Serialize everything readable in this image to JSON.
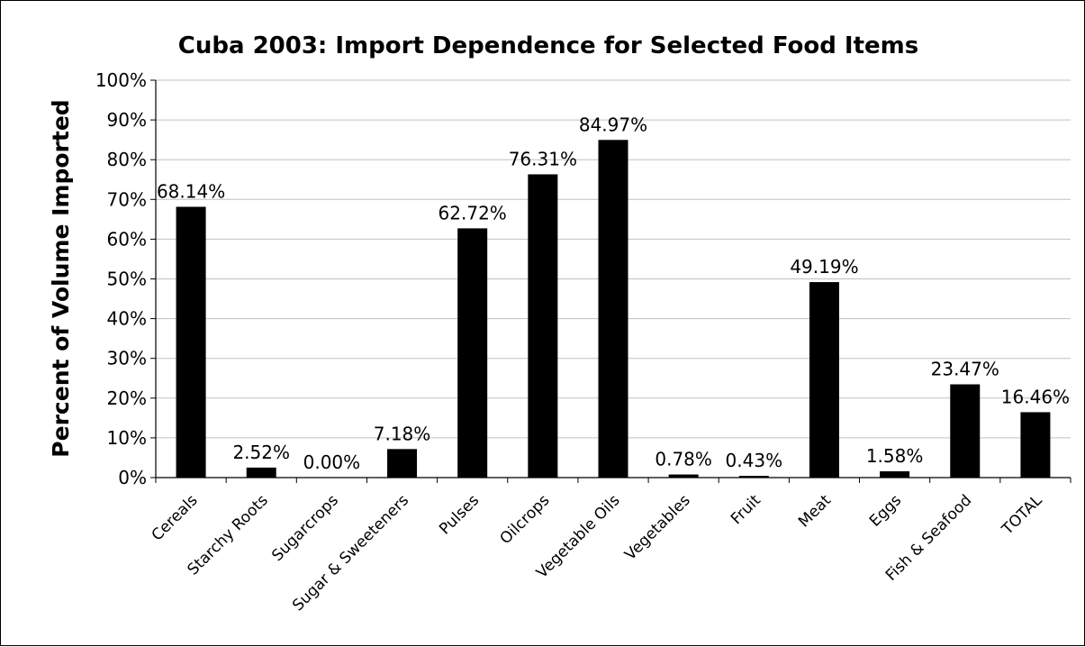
{
  "chart_data": {
    "type": "bar",
    "title": "Cuba 2003: Import Dependence for Selected Food Items",
    "xlabel": "",
    "ylabel": "Percent of Volume Imported",
    "ylim": [
      0,
      100
    ],
    "yticks": [
      "0%",
      "10%",
      "20%",
      "30%",
      "40%",
      "50%",
      "60%",
      "70%",
      "80%",
      "90%",
      "100%"
    ],
    "grid": true,
    "legend": "none",
    "bar_color": "#000000",
    "grid_color": "#c0c0c0",
    "categories": [
      "Cereals",
      "Starchy Roots",
      "Sugarcrops",
      "Sugar & Sweeteners",
      "Pulses",
      "Oilcrops",
      "Vegetable Oils",
      "Vegetables",
      "Fruit",
      "Meat",
      "Eggs",
      "Fish & Seafood",
      "TOTAL"
    ],
    "values": [
      68.14,
      2.52,
      0.0,
      7.18,
      62.72,
      76.31,
      84.97,
      0.78,
      0.43,
      49.19,
      1.58,
      23.47,
      16.46
    ],
    "data_labels": [
      "68.14%",
      "2.52%",
      "0.00%",
      "7.18%",
      "62.72%",
      "76.31%",
      "84.97%",
      "0.78%",
      "0.43%",
      "49.19%",
      "1.58%",
      "23.47%",
      "16.46%"
    ]
  }
}
